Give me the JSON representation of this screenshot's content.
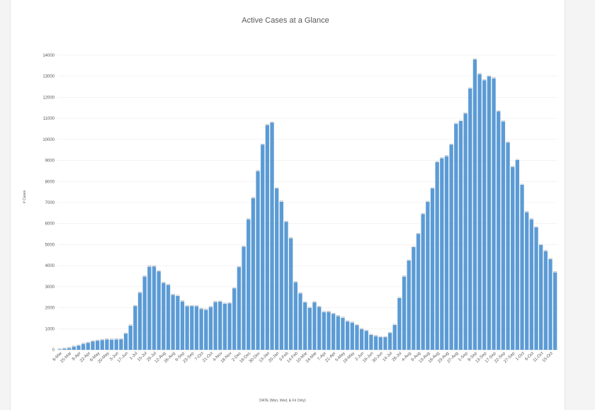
{
  "chart_data": {
    "type": "bar",
    "title": "Active Cases at a Glance",
    "xlabel": "DATE  (Mon, Wed, & Fri Only)",
    "ylabel": "# Cases",
    "ylim": [
      0,
      14000
    ],
    "yticks": [
      0,
      1000,
      2000,
      3000,
      4000,
      5000,
      6000,
      7000,
      8000,
      9000,
      10000,
      11000,
      12000,
      13000,
      14000
    ],
    "grid": true,
    "legend": "none",
    "bar_color": "#5b9bd5",
    "x_tick_labels": [
      "8-Mar",
      "25-Mar",
      "8-Apr",
      "22-Apr",
      "6-May",
      "20-May",
      "3-Jun",
      "17-Jun",
      "1-Jul",
      "15-Jul",
      "29-Jul",
      "12-Aug",
      "26-Aug",
      "9-Sep",
      "23-Sep",
      "7-Oct",
      "21-Oct",
      "4-Nov",
      "18-Nov",
      "2-Dec",
      "16-Dec",
      "30-Dec",
      "13-Jan",
      "20-Jan",
      "3-Feb",
      "14-Feb",
      "10-Mar",
      "24-Mar",
      "7-Apr",
      "21-Apr",
      "5-May",
      "19-May",
      "2-Jun",
      "16-Jun",
      "30-Jun",
      "14-Jul",
      "28-Jul",
      "4-Aug",
      "9-Aug",
      "13-Aug",
      "18-Aug",
      "23-Aug",
      "27-Aug",
      "1-Sep",
      "8-Sep",
      "13-Sep",
      "17-Sep",
      "22-Sep",
      "27-Sep",
      "1-Oct",
      "6-Oct",
      "11-Oct",
      "15-Oct"
    ],
    "values": [
      20,
      50,
      80,
      150,
      200,
      280,
      330,
      400,
      430,
      460,
      490,
      480,
      490,
      500,
      770,
      1150,
      2080,
      2710,
      3480,
      3950,
      3960,
      3730,
      3180,
      3080,
      2610,
      2560,
      2300,
      2070,
      2080,
      2070,
      1940,
      1900,
      2030,
      2270,
      2290,
      2190,
      2210,
      2920,
      3930,
      4900,
      6200,
      7210,
      8490,
      9750,
      10680,
      10800,
      7670,
      7040,
      6080,
      5300,
      3210,
      2680,
      2250,
      1990,
      2260,
      2040,
      1790,
      1800,
      1710,
      1600,
      1520,
      1350,
      1290,
      1170,
      980,
      900,
      710,
      650,
      600,
      600,
      800,
      1180,
      2460,
      3480,
      4240,
      4880,
      5510,
      6450,
      7030,
      7670,
      8920,
      9100,
      9200,
      9750,
      10740,
      10870,
      11230,
      12420,
      13800,
      13100,
      12810,
      12990,
      12900,
      11330,
      10850,
      9850,
      8690,
      9020,
      7840,
      6540,
      6200,
      5820,
      4980,
      4690,
      4310,
      3680
    ]
  }
}
